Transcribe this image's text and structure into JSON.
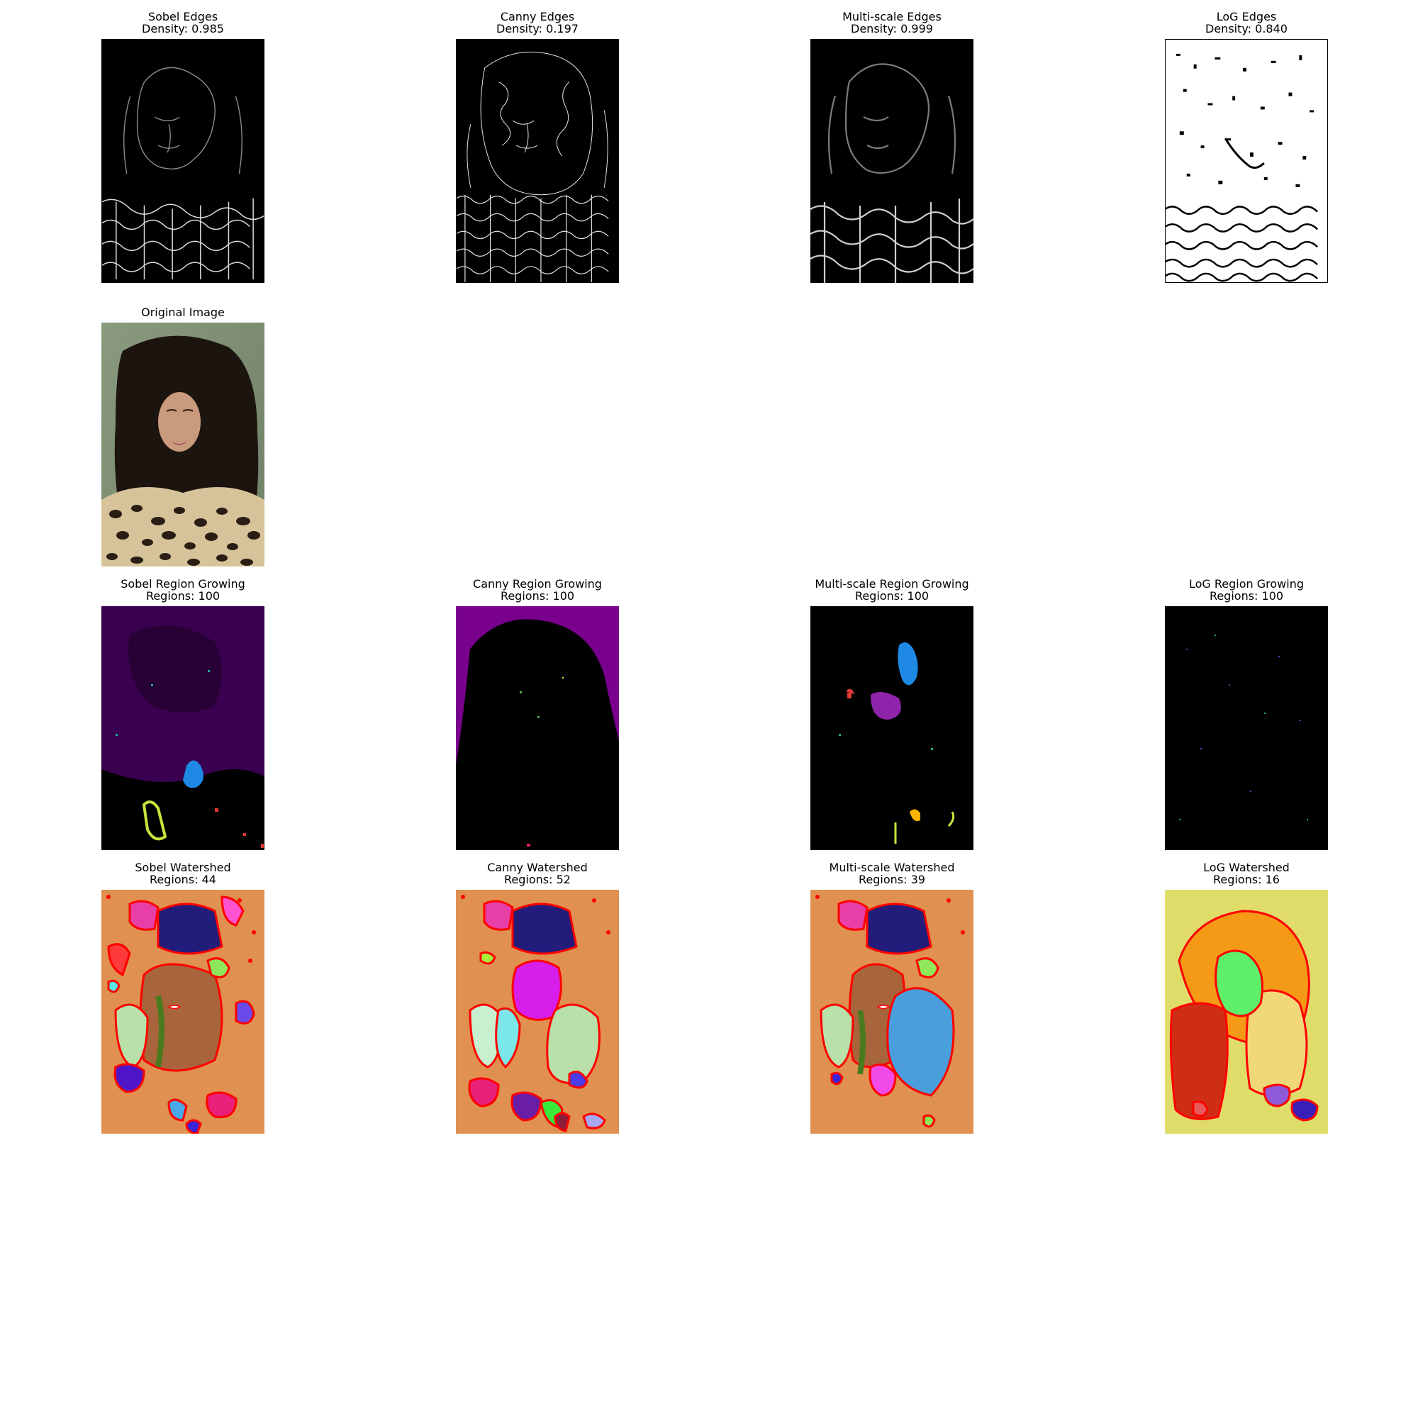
{
  "edges": [
    {
      "title": "Sobel Edges",
      "subtitle": "Density: 0.985"
    },
    {
      "title": "Canny Edges",
      "subtitle": "Density: 0.197"
    },
    {
      "title": "Multi-scale Edges",
      "subtitle": "Density: 0.999"
    },
    {
      "title": "LoG Edges",
      "subtitle": "Density: 0.840"
    }
  ],
  "original": {
    "title": "Original Image"
  },
  "region_growing": [
    {
      "title": "Sobel Region Growing",
      "subtitle": "Regions: 100"
    },
    {
      "title": "Canny Region Growing",
      "subtitle": "Regions: 100"
    },
    {
      "title": "Multi-scale Region Growing",
      "subtitle": "Regions: 100"
    },
    {
      "title": "LoG Region Growing",
      "subtitle": "Regions: 100"
    }
  ],
  "watershed": [
    {
      "title": "Sobel Watershed",
      "subtitle": "Regions: 44"
    },
    {
      "title": "Canny Watershed",
      "subtitle": "Regions: 52"
    },
    {
      "title": "Multi-scale Watershed",
      "subtitle": "Regions: 39"
    },
    {
      "title": "LoG Watershed",
      "subtitle": "Regions: 16"
    }
  ],
  "colors": {
    "boundary": "#ff0000",
    "watershed_bg": "#e09050",
    "log_watershed_bg": "#e0dc6a",
    "region_bg_purple": "#3a0050",
    "canny_region_purple": "#78008c"
  }
}
